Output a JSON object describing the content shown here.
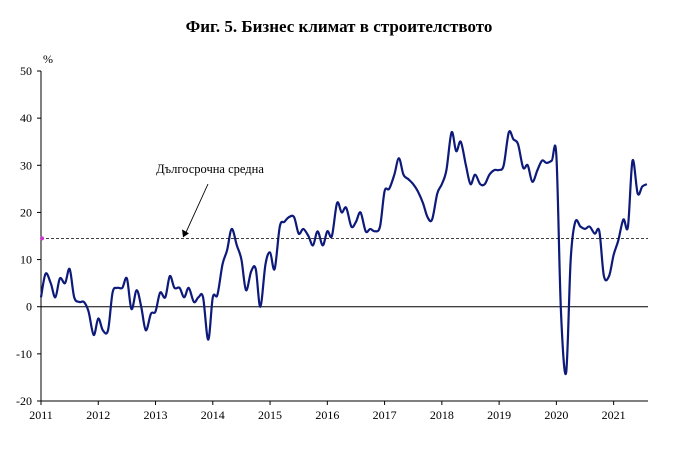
{
  "chart_data": {
    "type": "line",
    "title": "Фиг. 5. Бизнес климат в строителството",
    "ylabel": "%",
    "ylim": [
      -20,
      50
    ],
    "yticks": [
      -20,
      -10,
      0,
      10,
      20,
      30,
      40,
      50
    ],
    "xlim": [
      2011,
      2021.6
    ],
    "xticks": [
      "2011",
      "2012",
      "2013",
      "2014",
      "2015",
      "2016",
      "2017",
      "2018",
      "2019",
      "2020",
      "2021"
    ],
    "grid": false,
    "legend": "none",
    "annotation": {
      "text": "Дългосрочна средна",
      "value": 14.5
    },
    "series": [
      {
        "color": "#0d1a7a",
        "x": [
          2011.0,
          2011.08,
          2011.17,
          2011.25,
          2011.33,
          2011.42,
          2011.5,
          2011.58,
          2011.67,
          2011.75,
          2011.83,
          2011.92,
          2012.0,
          2012.08,
          2012.17,
          2012.25,
          2012.33,
          2012.42,
          2012.5,
          2012.58,
          2012.67,
          2012.75,
          2012.83,
          2012.92,
          2013.0,
          2013.08,
          2013.17,
          2013.25,
          2013.33,
          2013.42,
          2013.5,
          2013.58,
          2013.67,
          2013.75,
          2013.83,
          2013.92,
          2014.0,
          2014.08,
          2014.17,
          2014.25,
          2014.33,
          2014.42,
          2014.5,
          2014.58,
          2014.67,
          2014.75,
          2014.83,
          2014.92,
          2015.0,
          2015.08,
          2015.17,
          2015.25,
          2015.33,
          2015.42,
          2015.5,
          2015.58,
          2015.67,
          2015.75,
          2015.83,
          2015.92,
          2016.0,
          2016.08,
          2016.17,
          2016.25,
          2016.33,
          2016.42,
          2016.5,
          2016.58,
          2016.67,
          2016.75,
          2016.83,
          2016.92,
          2017.0,
          2017.08,
          2017.17,
          2017.25,
          2017.33,
          2017.42,
          2017.5,
          2017.58,
          2017.67,
          2017.75,
          2017.83,
          2017.92,
          2018.0,
          2018.08,
          2018.17,
          2018.25,
          2018.33,
          2018.42,
          2018.5,
          2018.58,
          2018.67,
          2018.75,
          2018.83,
          2018.92,
          2019.0,
          2019.08,
          2019.17,
          2019.25,
          2019.33,
          2019.42,
          2019.5,
          2019.58,
          2019.67,
          2019.75,
          2019.83,
          2019.92,
          2020.0,
          2020.08,
          2020.17,
          2020.25,
          2020.33,
          2020.42,
          2020.5,
          2020.58,
          2020.67,
          2020.75,
          2020.83,
          2020.92,
          2021.0,
          2021.08,
          2021.17,
          2021.25,
          2021.33,
          2021.42,
          2021.5,
          2021.58
        ],
        "values": [
          2,
          7,
          5,
          2,
          6,
          5,
          8,
          2,
          1,
          1,
          -1,
          -6,
          -2.5,
          -5,
          -5,
          3,
          4,
          4,
          6,
          -0.5,
          3.5,
          0,
          -5,
          -1.5,
          -1,
          3,
          2,
          6.5,
          4,
          4,
          2,
          4,
          1,
          2,
          2,
          -7,
          2,
          2.5,
          9,
          12,
          16.5,
          13,
          10,
          3.5,
          7.5,
          8,
          0,
          9,
          11.5,
          8,
          17,
          18,
          19,
          19,
          15.5,
          16.5,
          15,
          13,
          16,
          13,
          16,
          15,
          22,
          20,
          21,
          17,
          18,
          20,
          16,
          16.5,
          16,
          17,
          24.5,
          25,
          28,
          31.5,
          28,
          27,
          26,
          24.5,
          22,
          19,
          18.5,
          24,
          26,
          29,
          37,
          33,
          35,
          30,
          26,
          28,
          26,
          26,
          28,
          29,
          29,
          30,
          37,
          35.5,
          34.5,
          29.5,
          30,
          26.5,
          29,
          31,
          30.5,
          31,
          32,
          -1,
          -14,
          10,
          18,
          17,
          16.5,
          17,
          15.5,
          16,
          6.5,
          6.5,
          11,
          14,
          18.5,
          17,
          31,
          24,
          25.5,
          26
        ]
      }
    ]
  }
}
